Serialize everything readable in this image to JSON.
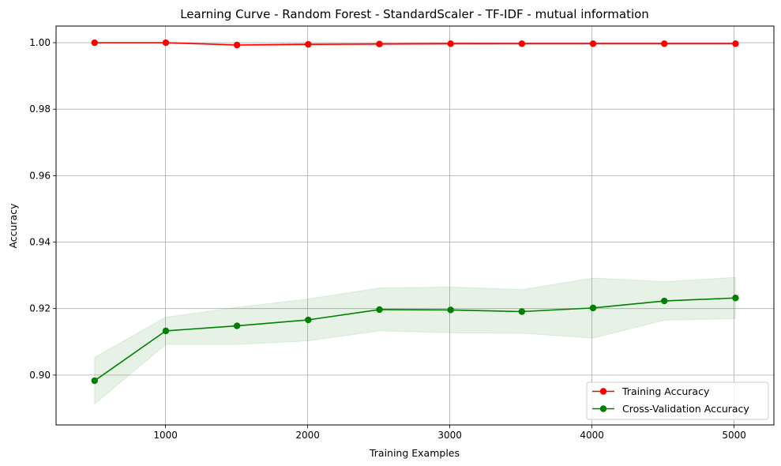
{
  "chart_data": {
    "type": "line",
    "title": "Learning Curve - Random Forest - StandardScaler - TF-IDF - mutual information",
    "xlabel": "Training Examples",
    "ylabel": "Accuracy",
    "xlim": [
      230,
      5280
    ],
    "ylim": [
      0.885,
      1.005
    ],
    "xticks": [
      1000,
      2000,
      3000,
      4000,
      5000
    ],
    "xtick_labels": [
      "1000",
      "2000",
      "3000",
      "4000",
      "5000"
    ],
    "yticks": [
      0.9,
      0.92,
      0.94,
      0.96,
      0.98,
      1.0
    ],
    "ytick_labels": [
      "0.90",
      "0.92",
      "0.94",
      "0.96",
      "0.98",
      "1.00"
    ],
    "grid": true,
    "legend_position": "lower-right",
    "x": [
      501,
      1002,
      1503,
      2004,
      2505,
      3006,
      3507,
      4008,
      4509,
      5010
    ],
    "series": [
      {
        "name": "Training Accuracy",
        "color": "#ff0000",
        "band_color": "#ff0000",
        "values": [
          1.0,
          1.0,
          0.9993,
          0.9995,
          0.9996,
          0.9997,
          0.9997,
          0.9997,
          0.9997,
          0.9997
        ],
        "lower": [
          1.0,
          1.0,
          0.999,
          0.9992,
          0.9993,
          0.9994,
          0.9995,
          0.9995,
          0.9995,
          0.9995
        ],
        "upper": [
          1.0,
          1.0,
          0.9996,
          0.9998,
          0.9999,
          1.0,
          0.9999,
          0.9999,
          0.9999,
          0.9999
        ]
      },
      {
        "name": "Cross-Validation Accuracy",
        "color": "#008000",
        "band_color": "#008000",
        "values": [
          0.8983,
          0.9133,
          0.9148,
          0.9166,
          0.9197,
          0.9196,
          0.9191,
          0.9202,
          0.9223,
          0.9232
        ],
        "lower": [
          0.8913,
          0.9092,
          0.9092,
          0.9103,
          0.9133,
          0.9127,
          0.9126,
          0.9111,
          0.9165,
          0.917
        ],
        "upper": [
          0.9053,
          0.9174,
          0.9204,
          0.9229,
          0.9262,
          0.9265,
          0.9257,
          0.9292,
          0.9281,
          0.9294
        ]
      }
    ]
  }
}
